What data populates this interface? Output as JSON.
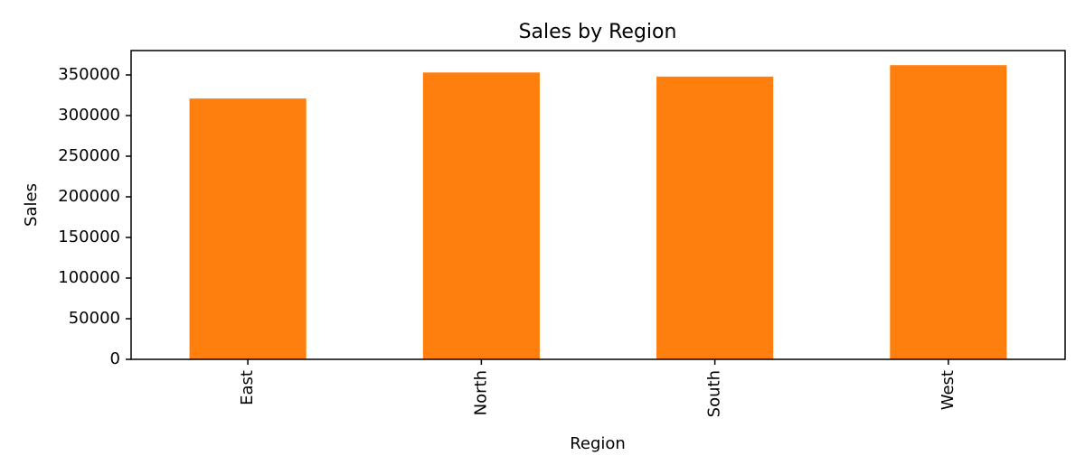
{
  "chart_data": {
    "type": "bar",
    "title": "Sales by Region",
    "xlabel": "Region",
    "ylabel": "Sales",
    "categories": [
      "East",
      "North",
      "South",
      "West"
    ],
    "values": [
      321000,
      353000,
      348000,
      362000
    ],
    "ylim": [
      0,
      380000
    ],
    "yticks": [
      0,
      50000,
      100000,
      150000,
      200000,
      250000,
      300000,
      350000
    ],
    "ytick_labels": [
      "0",
      "50000",
      "100000",
      "150000",
      "200000",
      "250000",
      "300000",
      "350000"
    ],
    "bar_color": "#ff7f0e",
    "grid": false,
    "legend": "none"
  }
}
